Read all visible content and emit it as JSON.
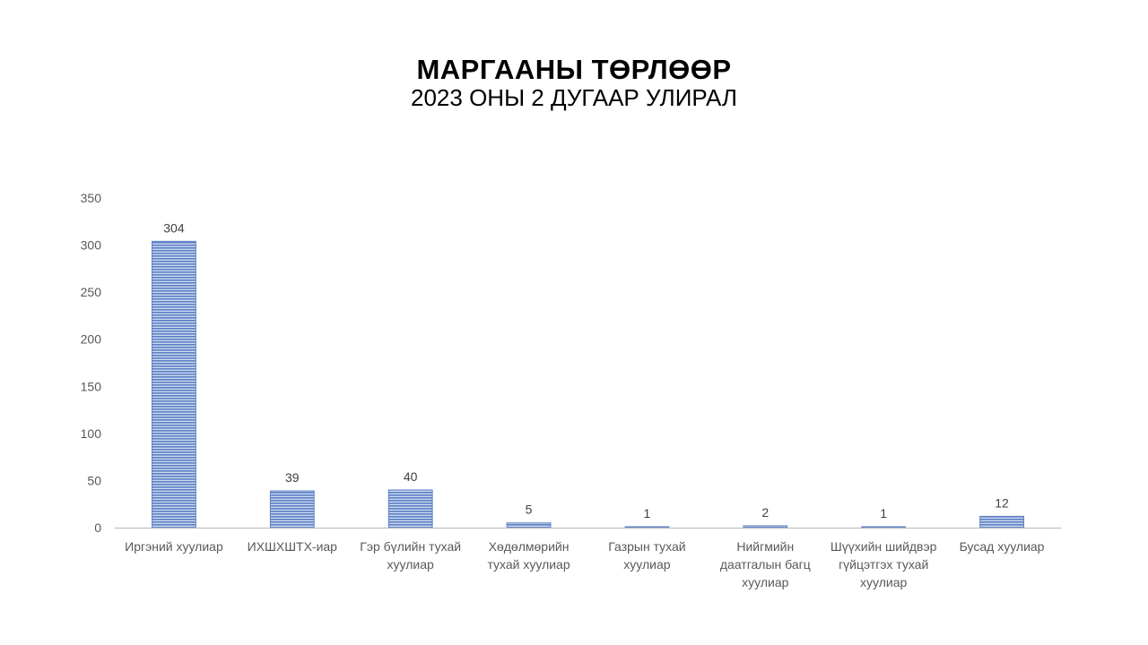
{
  "chart_data": {
    "type": "bar",
    "title": "МАРГААНЫ ТӨРЛӨӨР",
    "subtitle": "2023 ОНЫ 2 ДУГААР УЛИРАЛ",
    "categories": [
      [
        "Иргэний хуулиар"
      ],
      [
        "ИХШХШТХ-иар"
      ],
      [
        "Гэр бүлийн тухай",
        "хуулиар"
      ],
      [
        "Хөдөлмөрийн",
        "тухай хуулиар"
      ],
      [
        "Газрын тухай",
        "хуулиар"
      ],
      [
        "Нийгмийн",
        "даатгалын багц",
        "хуулиар"
      ],
      [
        "Шүүхийн шийдвэр",
        "гүйцэтгэх тухай",
        "хуулиар"
      ],
      [
        "Бусад хуулиар"
      ]
    ],
    "values": [
      304,
      39,
      40,
      5,
      1,
      2,
      1,
      12
    ],
    "ylim": [
      0,
      350
    ],
    "yticks": [
      0,
      50,
      100,
      150,
      200,
      250,
      300,
      350
    ],
    "grid": false,
    "bar_color": "#5b7fc4",
    "xlabel": "",
    "ylabel": ""
  }
}
